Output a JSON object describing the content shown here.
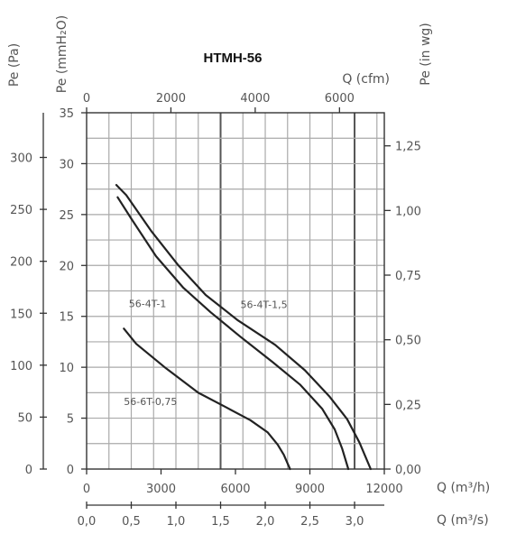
{
  "chart_data": {
    "type": "line",
    "title": "HTMH-56",
    "grid": true,
    "axes": {
      "bottom_m3h": {
        "label": "Q (m³/h)",
        "range": [
          0,
          12000
        ],
        "ticks": [
          "0",
          "3000",
          "6000",
          "9000",
          "12000"
        ]
      },
      "bottom_m3s": {
        "label": "Q (m³/s)",
        "range": [
          0,
          3.333
        ],
        "ticks": [
          "0,0",
          "0,5",
          "1,0",
          "1,5",
          "2,0",
          "2,5",
          "3,0"
        ]
      },
      "top_cfm": {
        "label": "Q (cfm)",
        "range": [
          0,
          7063
        ],
        "ticks": [
          "0",
          "2000",
          "4000",
          "6000"
        ]
      },
      "left_pa": {
        "label": "Pe (Pa)",
        "range": [
          0,
          343
        ],
        "ticks": [
          "0",
          "50",
          "100",
          "150",
          "200",
          "250",
          "300"
        ]
      },
      "left_mmh2o": {
        "label": "Pe (mmH₂O)",
        "range": [
          0,
          35
        ],
        "ticks": [
          "0",
          "5",
          "10",
          "15",
          "20",
          "25",
          "30",
          "35"
        ]
      },
      "right_inwg": {
        "label": "Pe (in wg)",
        "range": [
          0,
          1.378
        ],
        "ticks": [
          "0,00",
          "0,25",
          "0,50",
          "0,75",
          "1,00",
          "1,25"
        ]
      }
    },
    "x_unit": "m3/h",
    "y_unit": "mmH2O",
    "series": [
      {
        "name": "56-4T-1",
        "x": [
          1250,
          1800,
          2800,
          3900,
          5000,
          6200,
          7500,
          8600,
          9500,
          10000,
          10300,
          10550
        ],
        "y": [
          26.7,
          24.6,
          20.9,
          17.8,
          15.4,
          13.0,
          10.5,
          8.3,
          5.9,
          3.9,
          2.0,
          0
        ]
      },
      {
        "name": "56-4T-1,5",
        "x": [
          1200,
          1600,
          2600,
          3700,
          4800,
          6100,
          7600,
          8800,
          9800,
          10500,
          11000,
          11450
        ],
        "y": [
          27.9,
          26.9,
          23.4,
          20.0,
          17.1,
          14.6,
          12.2,
          9.7,
          7.1,
          4.9,
          2.6,
          0
        ]
      },
      {
        "name": "56-6T-0,75",
        "x": [
          1500,
          2000,
          3200,
          4500,
          5600,
          6600,
          7300,
          7700,
          7950,
          8200
        ],
        "y": [
          13.8,
          12.3,
          9.9,
          7.5,
          6.1,
          4.8,
          3.6,
          2.4,
          1.4,
          0
        ]
      }
    ]
  }
}
